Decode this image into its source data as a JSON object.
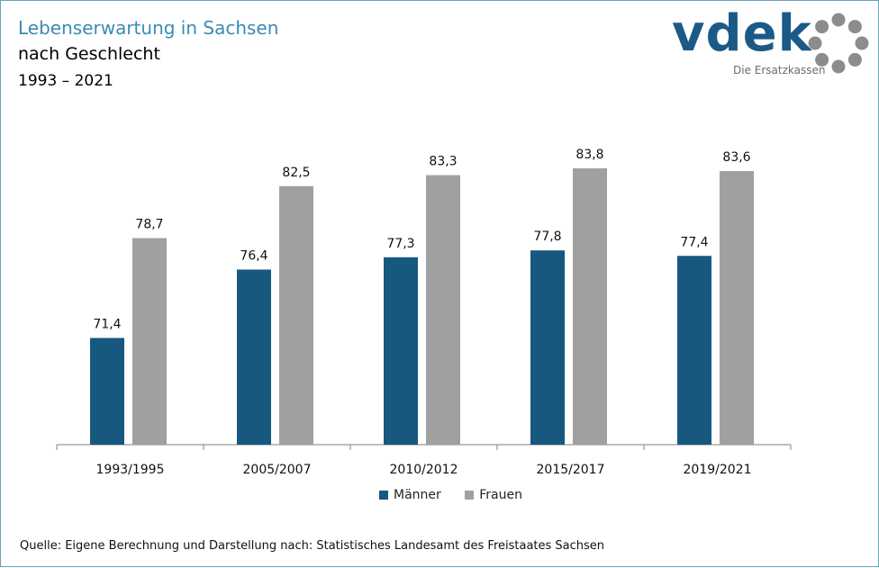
{
  "header": {
    "title": "Lebenserwartung in Sachsen",
    "subtitle": "nach Geschlecht",
    "period": "1993 – 2021"
  },
  "logo": {
    "text": "vdek",
    "tagline": "Die Ersatzkassen",
    "colors": {
      "text": "#1b5a86",
      "ring": "#8c8c8c"
    }
  },
  "source": "Quelle: Eigene Berechnung und Darstellung nach: Statistisches Landesamt des Freistaates Sachsen",
  "chart_data": {
    "type": "bar",
    "categories": [
      "1993/1995",
      "2005/2007",
      "2010/2012",
      "2015/2017",
      "2019/2021"
    ],
    "series": [
      {
        "name": "Männer",
        "color": "#17587f",
        "values": [
          71.4,
          76.4,
          77.3,
          77.8,
          77.4
        ],
        "labels": [
          "71,4",
          "76,4",
          "77,3",
          "77,8",
          "77,4"
        ]
      },
      {
        "name": "Frauen",
        "color": "#a0a0a0",
        "values": [
          78.7,
          82.5,
          83.3,
          83.8,
          83.6
        ],
        "labels": [
          "78,7",
          "82,5",
          "83,3",
          "83,8",
          "83,6"
        ]
      }
    ],
    "ylim": [
      63.6,
      83.8
    ],
    "grid": false,
    "legend": "bottom-center"
  }
}
